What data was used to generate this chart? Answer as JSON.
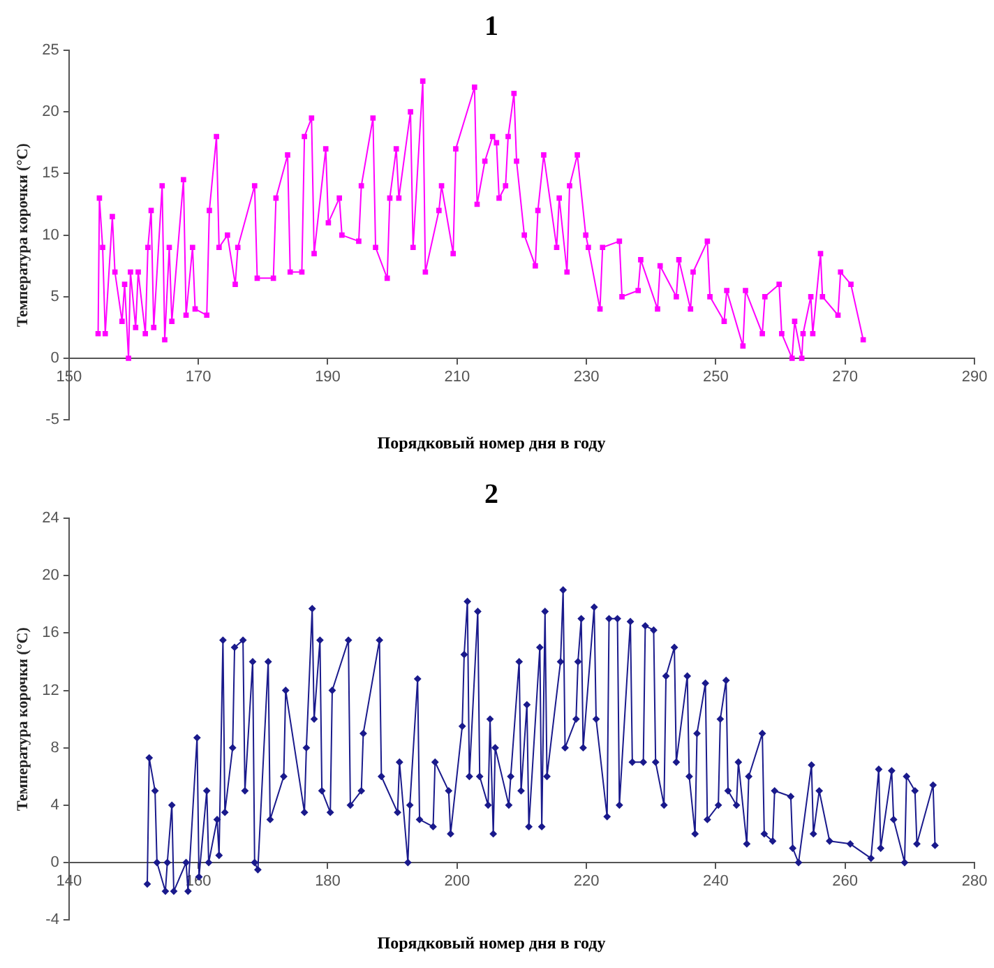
{
  "chart_data": [
    {
      "type": "line",
      "title": "1",
      "xlabel": "Порядковый номер дня в году",
      "ylabel": "Температура корочки (°C)",
      "xlim": [
        150,
        290
      ],
      "xticks": [
        150,
        170,
        190,
        210,
        230,
        250,
        270,
        290
      ],
      "ylim": [
        -5,
        25
      ],
      "yticks": [
        -5,
        0,
        5,
        10,
        15,
        20,
        25
      ],
      "marker": "square",
      "series": [
        {
          "color": "#ff00ff",
          "x": [
            154.5,
            154.7,
            155.2,
            155.6,
            156.7,
            157.1,
            158.2,
            158.6,
            159.2,
            159.5,
            160.3,
            160.7,
            161.8,
            162.2,
            162.7,
            163.1,
            164.4,
            164.8,
            165.5,
            165.9,
            167.7,
            168.1,
            169.1,
            169.5,
            171.3,
            171.7,
            172.8,
            173.2,
            174.5,
            175.7,
            176.1,
            178.7,
            179.1,
            181.6,
            182,
            183.8,
            184.2,
            186,
            186.4,
            187.5,
            187.9,
            189.7,
            190.1,
            191.8,
            192.2,
            194.8,
            195.2,
            197,
            197.4,
            199.2,
            199.6,
            200.6,
            201,
            202.8,
            203.2,
            204.7,
            205.1,
            207.2,
            207.6,
            209.4,
            209.8,
            212.7,
            213.1,
            214.3,
            215.5,
            216.1,
            216.5,
            217.5,
            217.9,
            218.8,
            219.2,
            220.4,
            222.1,
            222.5,
            223.4,
            225.4,
            225.8,
            227,
            227.4,
            228.6,
            229.9,
            230.3,
            232.1,
            232.5,
            235.1,
            235.5,
            238,
            238.4,
            241,
            241.4,
            243.9,
            244.3,
            246.1,
            246.5,
            248.7,
            249.1,
            251.3,
            251.7,
            254.2,
            254.6,
            257.2,
            257.6,
            259.8,
            260.2,
            261.8,
            262.2,
            263.3,
            263.5,
            264.7,
            265,
            266.2,
            266.5,
            268.9,
            269.3,
            270.9,
            272.8
          ],
          "values": [
            2,
            13,
            9,
            2,
            11.5,
            7,
            3,
            6,
            0,
            7,
            2.5,
            7,
            2,
            9,
            12,
            2.5,
            14,
            1.5,
            9,
            3,
            14.5,
            3.5,
            9,
            4,
            3.5,
            12,
            18,
            9,
            10,
            6,
            9,
            14,
            6.5,
            6.5,
            13,
            16.5,
            7,
            7,
            18,
            19.5,
            8.5,
            17,
            11,
            13,
            10,
            9.5,
            14,
            19.5,
            9,
            6.5,
            13,
            17,
            13,
            20,
            9,
            22.5,
            7,
            12,
            14,
            8.5,
            17,
            22,
            12.5,
            16,
            18,
            17.5,
            13,
            14,
            18,
            21.5,
            16,
            10,
            7.5,
            12,
            16.5,
            9,
            13,
            7,
            14,
            16.5,
            10,
            9,
            4,
            9,
            9.5,
            5,
            5.5,
            8,
            4,
            7.5,
            5,
            8,
            4,
            7,
            9.5,
            5,
            3,
            5.5,
            1,
            5.5,
            2,
            5,
            6,
            2,
            0,
            3,
            0,
            2,
            5,
            2,
            8.5,
            5,
            3.5,
            7,
            6,
            1.5
          ]
        }
      ]
    },
    {
      "type": "line",
      "title": "2",
      "xlabel": "Порядковый номер дня в году",
      "ylabel": "Температура корочки (°C)",
      "xlim": [
        140,
        280
      ],
      "xticks": [
        140,
        160,
        180,
        200,
        220,
        240,
        260,
        280
      ],
      "ylim": [
        -4,
        24
      ],
      "yticks": [
        -4,
        0,
        4,
        8,
        12,
        16,
        20,
        24
      ],
      "marker": "diamond",
      "series": [
        {
          "color": "#1a1a8c",
          "x": [
            152.1,
            152.4,
            153.3,
            153.6,
            154.9,
            155.2,
            155.9,
            156.2,
            158.1,
            158.4,
            159.8,
            160.1,
            161.3,
            161.6,
            162.9,
            163.2,
            163.8,
            164.1,
            165.3,
            165.6,
            166.9,
            167.2,
            168.4,
            168.7,
            169.2,
            170.8,
            171.1,
            173.2,
            173.5,
            176.4,
            176.7,
            177.6,
            177.9,
            178.8,
            179.1,
            180.4,
            180.7,
            183.2,
            183.5,
            185.2,
            185.5,
            188,
            188.3,
            190.8,
            191.1,
            192.4,
            192.7,
            193.9,
            194.2,
            196.3,
            196.6,
            198.7,
            199,
            200.8,
            201.1,
            201.6,
            201.9,
            203.2,
            203.5,
            204.8,
            205.1,
            205.6,
            205.9,
            208,
            208.3,
            209.6,
            209.9,
            210.8,
            211.1,
            212.8,
            213.1,
            213.6,
            213.9,
            216,
            216.4,
            216.7,
            218.4,
            218.7,
            219.2,
            219.5,
            221.2,
            221.5,
            223.2,
            223.5,
            224.8,
            225.1,
            226.8,
            227.1,
            228.8,
            229.1,
            230.4,
            230.7,
            232,
            232.3,
            233.6,
            233.9,
            235.6,
            235.9,
            236.8,
            237.1,
            238.4,
            238.7,
            240.4,
            240.7,
            241.6,
            241.9,
            243.2,
            243.5,
            244.8,
            245.1,
            247.2,
            247.5,
            248.8,
            249.1,
            251.6,
            251.9,
            252.8,
            254.8,
            255.1,
            256,
            257.6,
            260.8,
            264,
            265.2,
            265.5,
            267.2,
            267.5,
            269.2,
            269.5,
            270.8,
            271.1,
            273.6,
            273.9
          ],
          "values": [
            -1.5,
            7.3,
            5,
            0,
            -2,
            0,
            4,
            -2,
            0,
            -2,
            8.7,
            -1,
            5,
            0,
            3,
            0.5,
            15.5,
            3.5,
            8,
            15,
            15.5,
            5,
            14,
            0,
            -0.5,
            14,
            3,
            6,
            12,
            3.5,
            8,
            17.7,
            10,
            15.5,
            5,
            3.5,
            12,
            15.5,
            4,
            5,
            9,
            15.5,
            6,
            3.5,
            7,
            0,
            4,
            12.8,
            3,
            2.5,
            7,
            5,
            2,
            9.5,
            14.5,
            18.2,
            6,
            17.5,
            6,
            4,
            10,
            2,
            8,
            4,
            6,
            14,
            5,
            11,
            2.5,
            15,
            2.5,
            17.5,
            6,
            14,
            19,
            8,
            10,
            14,
            17,
            8,
            17.8,
            10,
            3.2,
            17,
            17,
            4,
            16.8,
            7,
            7,
            16.5,
            16.2,
            7,
            4,
            13,
            15,
            7,
            13,
            6,
            2,
            9,
            12.5,
            3,
            4,
            10,
            12.7,
            5,
            4,
            7,
            1.3,
            6,
            9,
            2,
            1.5,
            5,
            4.6,
            1,
            0,
            6.8,
            2,
            5,
            1.5,
            1.3,
            0.3,
            6.5,
            1,
            6.4,
            3,
            0,
            6,
            5,
            1.3,
            5.4,
            1.2
          ]
        }
      ]
    }
  ]
}
